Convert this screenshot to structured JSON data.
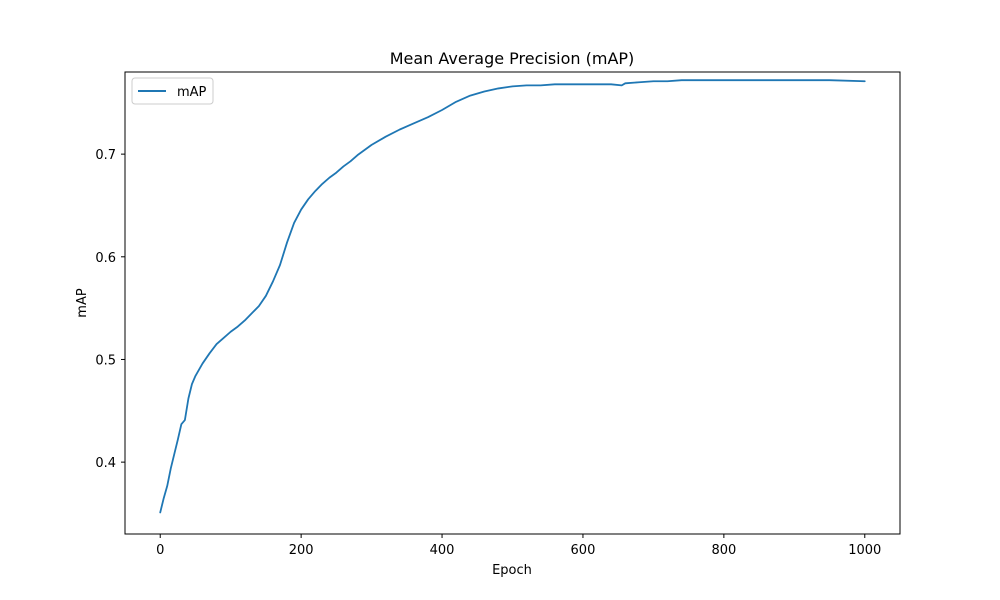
{
  "chart_data": {
    "type": "line",
    "title": "Mean Average Precision (mAP)",
    "xlabel": "Epoch",
    "ylabel": "mAP",
    "xlim": [
      -50,
      1050
    ],
    "ylim": [
      0.33,
      0.78
    ],
    "xticks": [
      0,
      200,
      400,
      600,
      800,
      1000
    ],
    "xtick_labels": [
      "0",
      "200",
      "400",
      "600",
      "800",
      "1000"
    ],
    "yticks": [
      0.4,
      0.5,
      0.6,
      0.7
    ],
    "ytick_labels": [
      "0.4",
      "0.5",
      "0.6",
      "0.7"
    ],
    "grid": false,
    "legend_position": "top-left",
    "series": [
      {
        "name": "mAP",
        "color": "#1f77b4",
        "x": [
          0,
          5,
          10,
          15,
          20,
          25,
          30,
          35,
          40,
          45,
          50,
          60,
          70,
          80,
          90,
          100,
          110,
          120,
          130,
          140,
          150,
          160,
          170,
          180,
          190,
          200,
          210,
          220,
          230,
          240,
          250,
          260,
          270,
          280,
          290,
          300,
          320,
          340,
          360,
          380,
          400,
          420,
          440,
          460,
          480,
          500,
          520,
          540,
          560,
          580,
          600,
          620,
          640,
          655,
          660,
          680,
          700,
          720,
          740,
          760,
          780,
          800,
          850,
          900,
          950,
          1000
        ],
        "y": [
          0.351,
          0.365,
          0.377,
          0.394,
          0.408,
          0.422,
          0.437,
          0.441,
          0.462,
          0.476,
          0.484,
          0.496,
          0.506,
          0.515,
          0.521,
          0.527,
          0.532,
          0.538,
          0.545,
          0.552,
          0.562,
          0.576,
          0.592,
          0.614,
          0.633,
          0.646,
          0.656,
          0.664,
          0.671,
          0.677,
          0.682,
          0.688,
          0.693,
          0.699,
          0.704,
          0.709,
          0.717,
          0.724,
          0.73,
          0.736,
          0.743,
          0.751,
          0.757,
          0.761,
          0.764,
          0.766,
          0.767,
          0.767,
          0.768,
          0.768,
          0.768,
          0.768,
          0.768,
          0.767,
          0.769,
          0.77,
          0.771,
          0.771,
          0.772,
          0.772,
          0.772,
          0.772,
          0.772,
          0.772,
          0.772,
          0.771
        ]
      }
    ]
  }
}
